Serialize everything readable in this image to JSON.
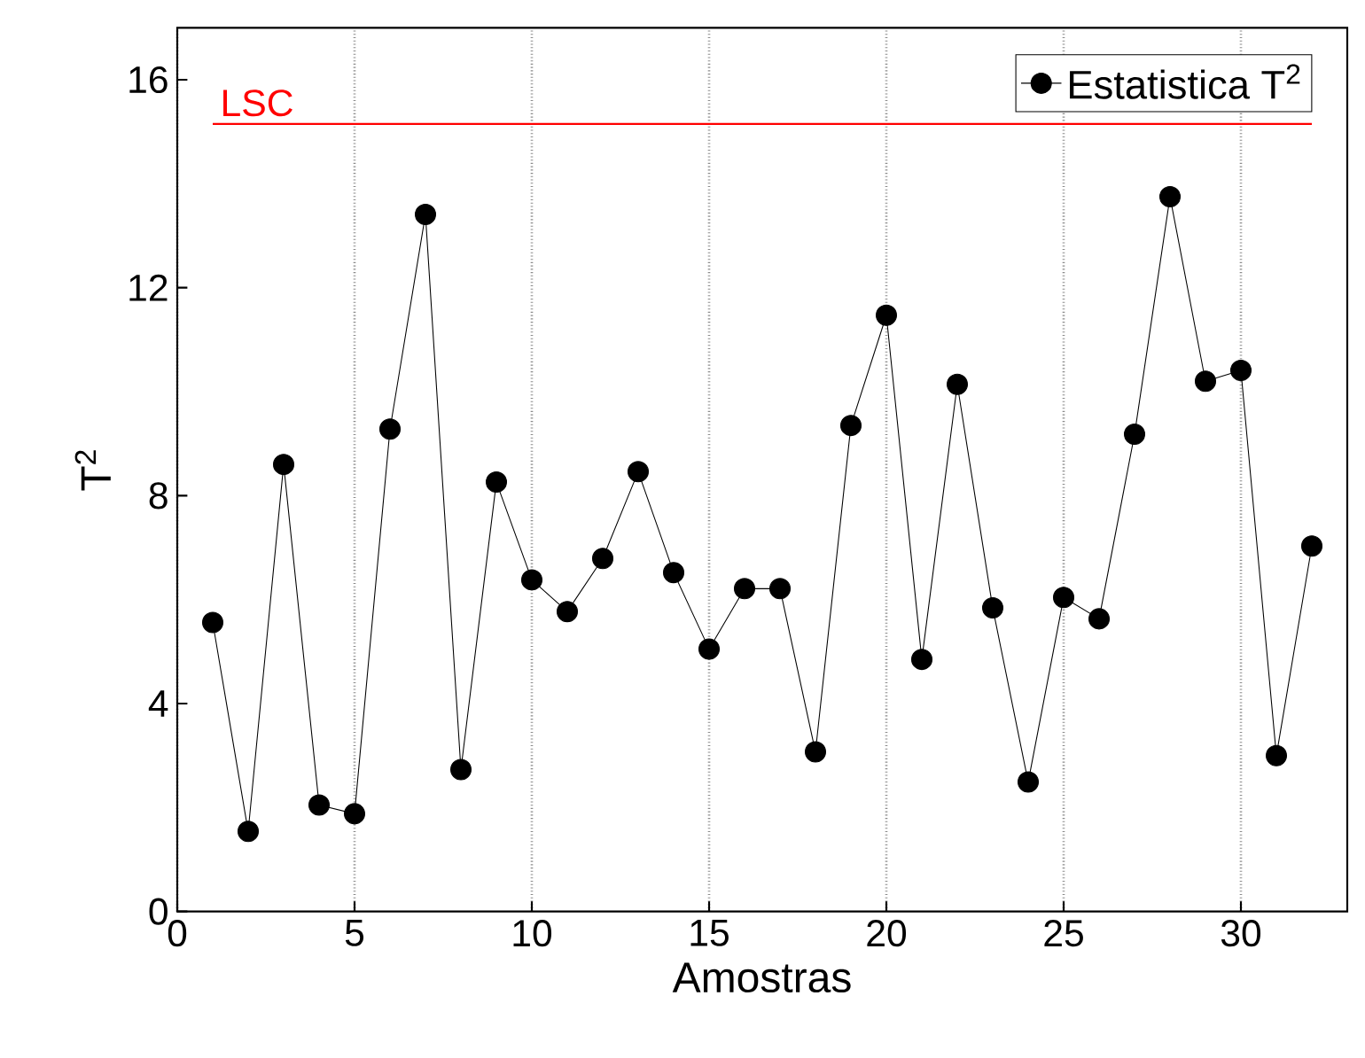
{
  "chart_data": {
    "type": "line",
    "xlabel": "Amostras",
    "ylabel": "T$^{2}$",
    "x": [
      1,
      2,
      3,
      4,
      5,
      6,
      7,
      8,
      9,
      10,
      11,
      12,
      13,
      14,
      15,
      16,
      17,
      18,
      19,
      20,
      21,
      22,
      23,
      24,
      25,
      26,
      27,
      28,
      29,
      30,
      31,
      32
    ],
    "series": [
      {
        "name": "Estatistica T$^{2}$",
        "color": "#000000",
        "values": [
          5.56,
          1.54,
          8.6,
          2.05,
          1.88,
          9.28,
          13.41,
          2.73,
          8.26,
          6.38,
          5.77,
          6.79,
          8.46,
          6.52,
          5.05,
          6.21,
          6.21,
          3.07,
          9.35,
          11.47,
          4.85,
          10.14,
          5.84,
          2.49,
          6.04,
          5.63,
          9.18,
          13.75,
          10.2,
          10.41,
          3.0,
          7.03
        ]
      }
    ],
    "xlim": [
      0,
      33
    ],
    "ylim": [
      0,
      17
    ],
    "xticks": [
      0,
      5,
      10,
      15,
      20,
      25,
      30
    ],
    "yticks": [
      0,
      4,
      8,
      12,
      16
    ],
    "ref_lines": [
      {
        "axis": "y",
        "value": 15.15,
        "label": "LSC",
        "color": "#ff0000"
      }
    ],
    "grid": "x",
    "legend": "top right",
    "marker": "circle",
    "line_style": "solid"
  }
}
